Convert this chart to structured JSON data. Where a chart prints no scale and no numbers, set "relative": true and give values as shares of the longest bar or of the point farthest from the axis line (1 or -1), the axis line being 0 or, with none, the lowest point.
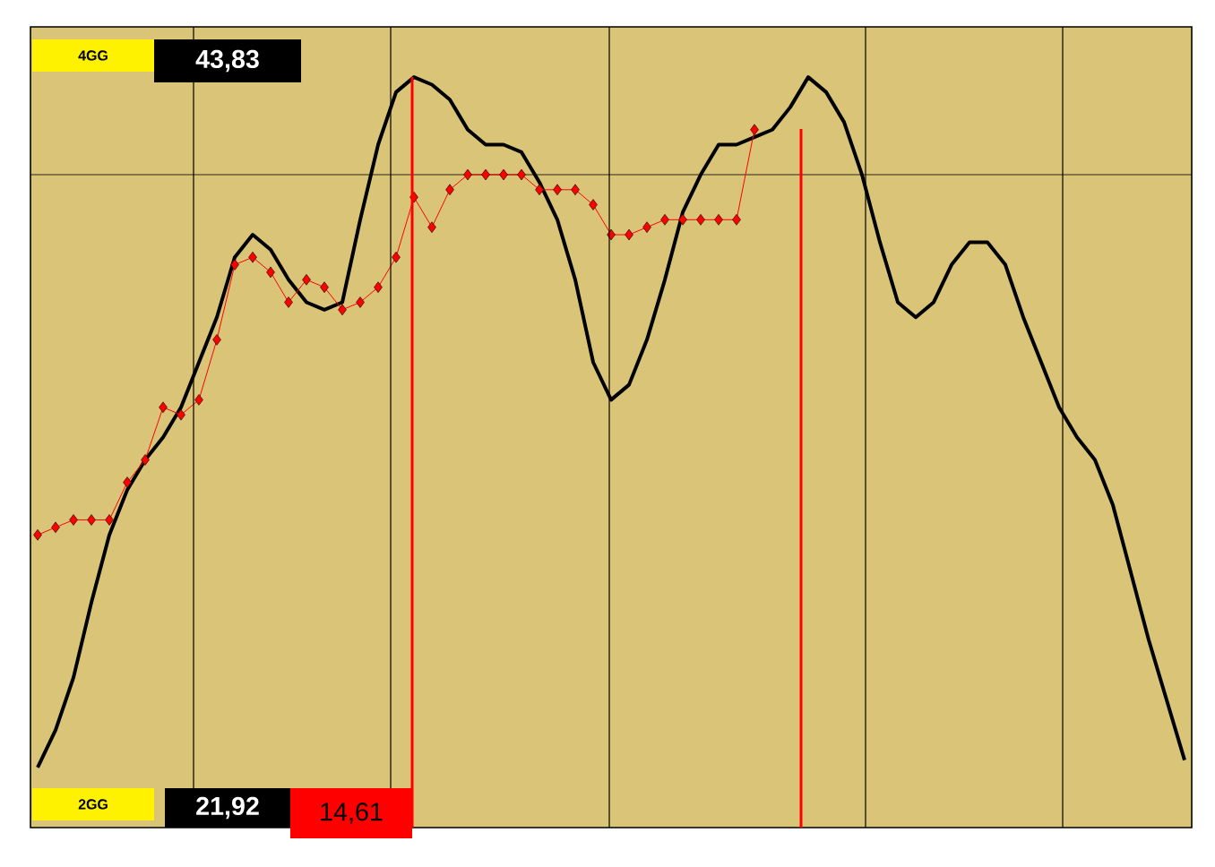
{
  "chart_data": {
    "type": "line",
    "relative": true,
    "tick_labels": false,
    "grid": "x",
    "categories": [
      null,
      null,
      null,
      null,
      null,
      null,
      null,
      null,
      null,
      null,
      null,
      null,
      null,
      null,
      null,
      null,
      null,
      null,
      null,
      null,
      null,
      null,
      null,
      null,
      null,
      null,
      null,
      null,
      null,
      null,
      null,
      null,
      null,
      null,
      null,
      null,
      null,
      null,
      null,
      null,
      null,
      null,
      null,
      null,
      null,
      null,
      null,
      null,
      null,
      null,
      null,
      null,
      null,
      null,
      null,
      null,
      null,
      null,
      null,
      null,
      null,
      null,
      null,
      null,
      null
    ],
    "series": [
      {
        "color": "#000000",
        "marker": "none",
        "values": [
          0.08,
          0.13,
          0.2,
          0.3,
          0.39,
          0.45,
          0.49,
          0.52,
          0.56,
          0.62,
          0.68,
          0.76,
          0.79,
          0.77,
          0.73,
          0.7,
          0.69,
          0.7,
          0.81,
          0.91,
          0.98,
          1,
          0.99,
          0.97,
          0.93,
          0.91,
          0.91,
          0.9,
          0.86,
          0.81,
          0.73,
          0.62,
          0.57,
          0.59,
          0.65,
          0.73,
          0.82,
          0.87,
          0.91,
          0.91,
          0.92,
          0.93,
          0.96,
          1,
          0.98,
          0.94,
          0.87,
          0.78,
          0.7,
          0.68,
          0.7,
          0.75,
          0.78,
          0.78,
          0.75,
          0.68,
          0.62,
          0.56,
          0.52,
          0.49,
          0.43,
          0.34,
          0.25,
          0.17,
          0.09
        ]
      },
      {
        "color": "#ff0000",
        "marker": "diamond",
        "values": [
          0.39,
          0.4,
          0.41,
          0.41,
          0.41,
          0.46,
          0.49,
          0.56,
          0.55,
          0.57,
          0.65,
          0.75,
          0.76,
          0.74,
          0.7,
          0.73,
          0.72,
          0.69,
          0.7,
          0.72,
          0.76,
          0.84,
          0.8,
          0.85,
          0.87,
          0.87,
          0.87,
          0.87,
          0.85,
          0.85,
          0.85,
          0.83,
          0.79,
          0.79,
          0.8,
          0.81,
          0.81,
          0.81,
          0.81,
          0.81,
          0.93,
          null,
          null,
          null,
          null,
          null,
          null,
          null,
          null,
          null,
          null,
          null,
          null,
          null,
          null,
          null,
          null,
          null,
          null,
          null,
          null,
          null,
          null,
          null,
          null
        ]
      }
    ],
    "ref_lines": [
      {
        "axis": "y",
        "value": 0.87,
        "color": "#000000"
      }
    ],
    "annotations": [
      "4GG",
      "43,83",
      "2GG",
      "21,92",
      "14,61"
    ]
  }
}
